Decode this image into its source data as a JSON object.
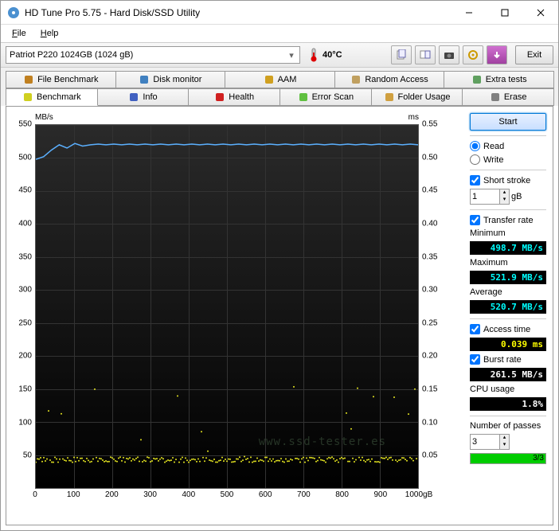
{
  "window": {
    "title": "HD Tune Pro 5.75 - Hard Disk/SSD Utility"
  },
  "menu": {
    "file": "File",
    "help": "Help"
  },
  "toolbar": {
    "device": "Patriot P220 1024GB (1024 gB)",
    "temp": "40°C",
    "exit": "Exit"
  },
  "tabs_top": [
    {
      "label": "File Benchmark",
      "icon": "#c08020"
    },
    {
      "label": "Disk monitor",
      "icon": "#4080c0"
    },
    {
      "label": "AAM",
      "icon": "#d0a020"
    },
    {
      "label": "Random Access",
      "icon": "#c0a060"
    },
    {
      "label": "Extra tests",
      "icon": "#60a060"
    }
  ],
  "tabs_bottom": [
    {
      "label": "Benchmark",
      "icon": "#d0d020",
      "active": true
    },
    {
      "label": "Info",
      "icon": "#4060c0"
    },
    {
      "label": "Health",
      "icon": "#d02020"
    },
    {
      "label": "Error Scan",
      "icon": "#60c040"
    },
    {
      "label": "Folder Usage",
      "icon": "#d0a040"
    },
    {
      "label": "Erase",
      "icon": "#808080"
    }
  ],
  "chart": {
    "y_left_unit": "MB/s",
    "y_right_unit": "ms",
    "x_unit": "gB",
    "y_left_max": 550,
    "y_left_min": 0,
    "y_left_step": 50,
    "y_right_max": 0.55,
    "y_right_min": 0,
    "y_right_step": 0.05,
    "x_min": 0,
    "x_max": 1000,
    "x_step": 100,
    "transfer_line_color": "#5bb0ff",
    "access_point_color": "#e8e820",
    "transfer_values": [
      498,
      502,
      512,
      520,
      515,
      522,
      518,
      520,
      521,
      520,
      521,
      520,
      521,
      520,
      521,
      520,
      521,
      520,
      521,
      520,
      521,
      520,
      521,
      520,
      521,
      520,
      521,
      520,
      521,
      520,
      521,
      520,
      521,
      520,
      521,
      520,
      521,
      520,
      521,
      520,
      521,
      520,
      521,
      520,
      521,
      520,
      521,
      520,
      521,
      520
    ],
    "access_base_ms": 0.039,
    "access_jitter_ms": 0.12,
    "grid_color": "#333333",
    "plot_bg_top": "#2a2a2a",
    "plot_bg_bottom": "#000000"
  },
  "side": {
    "start": "Start",
    "read": "Read",
    "write": "Write",
    "short_stroke": "Short stroke",
    "short_stroke_val": "1",
    "short_stroke_unit": "gB",
    "transfer_rate": "Transfer rate",
    "minimum": "Minimum",
    "minimum_val": "498.7 MB/s",
    "maximum": "Maximum",
    "maximum_val": "521.9 MB/s",
    "average": "Average",
    "average_val": "520.7 MB/s",
    "access_time": "Access time",
    "access_time_val": "0.039 ms",
    "burst_rate": "Burst rate",
    "burst_rate_val": "261.5 MB/s",
    "cpu_usage": "CPU usage",
    "cpu_usage_val": "1.8%",
    "passes": "Number of passes",
    "passes_val": "3",
    "progress_pct": 100,
    "progress_text": "3/3"
  },
  "watermark": "www.ssd-tester.es"
}
